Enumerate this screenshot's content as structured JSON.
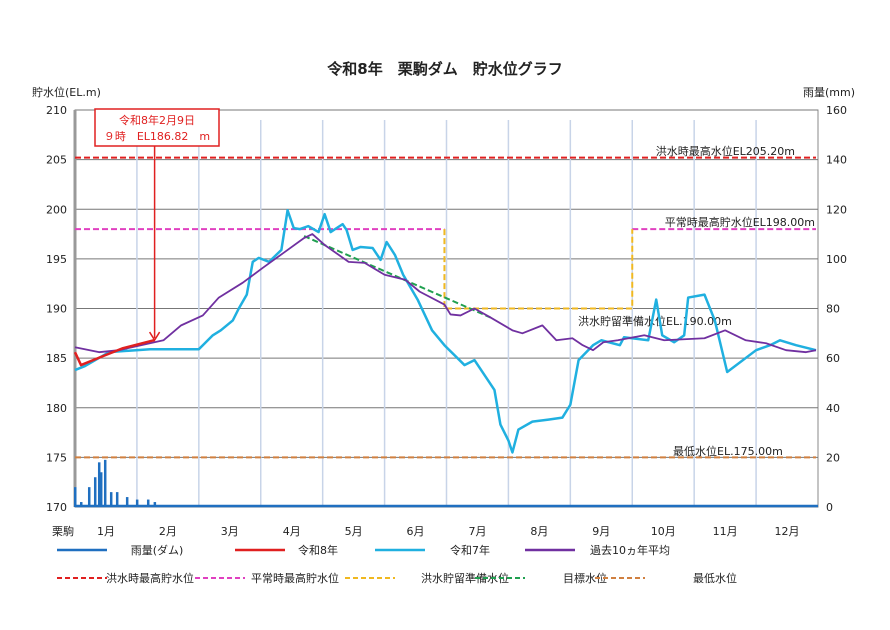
{
  "chart_data": {
    "type": "line",
    "title": "令和8年　栗駒ダム　貯水位グラフ",
    "ylabel": "貯水位(EL.m)",
    "y2label": "雨量(mm)",
    "xlabel": "栗駒",
    "ylim": [
      170,
      210
    ],
    "y2lim": [
      0,
      160
    ],
    "yticks": [
      "170",
      "175",
      "180",
      "185",
      "190",
      "195",
      "200",
      "205",
      "210"
    ],
    "y2ticks": [
      "0",
      "20",
      "40",
      "60",
      "80",
      "100",
      "120",
      "140",
      "160"
    ],
    "categories": [
      "1月",
      "2月",
      "3月",
      "4月",
      "5月",
      "6月",
      "7月",
      "8月",
      "9月",
      "10月",
      "11月",
      "12月"
    ],
    "grid": true,
    "annotation": {
      "line1": "令和8年2月9日",
      "line2": "９時　EL186.82　m",
      "date": "2/9",
      "value": 186.82
    },
    "reference_labels": {
      "flood_max": "洪水時最高水位EL205.20m",
      "normal_max": "平常時最高貯水位EL198.00m",
      "flood_prep": "洪水貯留準備水位EL.190.00m",
      "min": "最低水位EL.175.00m"
    },
    "series": [
      {
        "name": "令和8年",
        "color": "#e02020",
        "points": [
          [
            "1/1",
            185.6
          ],
          [
            "1/4",
            184.3
          ],
          [
            "1/15",
            185.2
          ],
          [
            "1/25",
            186.0
          ],
          [
            "2/9",
            186.82
          ]
        ]
      },
      {
        "name": "令和7年",
        "color": "#20b0e0",
        "points": [
          [
            "1/1",
            183.8
          ],
          [
            "1/6",
            184.2
          ],
          [
            "1/18",
            185.6
          ],
          [
            "2/7",
            185.9
          ],
          [
            "3/1",
            185.9
          ],
          [
            "3/3",
            186.3
          ],
          [
            "3/8",
            187.3
          ],
          [
            "3/12",
            187.8
          ],
          [
            "3/18",
            188.8
          ],
          [
            "3/21",
            190.0
          ],
          [
            "3/25",
            191.4
          ],
          [
            "3/28",
            194.7
          ],
          [
            "3/31",
            195.1
          ],
          [
            "4/5",
            194.7
          ],
          [
            "4/11",
            195.9
          ],
          [
            "4/14",
            199.9
          ],
          [
            "4/17",
            198.1
          ],
          [
            "4/20",
            198.0
          ],
          [
            "4/24",
            198.3
          ],
          [
            "4/29",
            197.7
          ],
          [
            "5/2",
            199.5
          ],
          [
            "5/5",
            197.7
          ],
          [
            "5/11",
            198.5
          ],
          [
            "5/13",
            197.9
          ],
          [
            "5/16",
            195.9
          ],
          [
            "5/20",
            196.2
          ],
          [
            "5/26",
            196.1
          ],
          [
            "5/30",
            194.9
          ],
          [
            "6/2",
            196.7
          ],
          [
            "6/6",
            195.4
          ],
          [
            "6/10",
            193.4
          ],
          [
            "6/17",
            190.9
          ],
          [
            "6/24",
            187.8
          ],
          [
            "6/30",
            186.3
          ],
          [
            "7/10",
            184.3
          ],
          [
            "7/15",
            184.8
          ],
          [
            "7/25",
            181.8
          ],
          [
            "7/28",
            178.3
          ],
          [
            "8/1",
            176.7
          ],
          [
            "8/3",
            175.5
          ],
          [
            "8/6",
            177.8
          ],
          [
            "8/13",
            178.6
          ],
          [
            "8/21",
            178.8
          ],
          [
            "8/28",
            179.0
          ],
          [
            "9/1",
            180.3
          ],
          [
            "9/5",
            184.8
          ],
          [
            "9/12",
            186.3
          ],
          [
            "9/16",
            186.8
          ],
          [
            "9/25",
            186.3
          ],
          [
            "9/27",
            187.1
          ],
          [
            "10/9",
            186.8
          ],
          [
            "10/13",
            190.9
          ],
          [
            "10/16",
            187.3
          ],
          [
            "10/22",
            186.6
          ],
          [
            "10/27",
            187.3
          ],
          [
            "10/29",
            191.1
          ],
          [
            "11/6",
            191.4
          ],
          [
            "11/11",
            188.8
          ],
          [
            "11/17",
            183.6
          ],
          [
            "12/1",
            185.8
          ],
          [
            "12/8",
            186.3
          ],
          [
            "12/13",
            186.8
          ],
          [
            "12/21",
            186.3
          ],
          [
            "12/31",
            185.8
          ]
        ]
      },
      {
        "name": "過去10ヵ年平均",
        "color": "#7030a0",
        "points": [
          [
            "1/1",
            186.1
          ],
          [
            "1/13",
            185.6
          ],
          [
            "1/23",
            185.8
          ],
          [
            "2/13",
            186.8
          ],
          [
            "2/21",
            188.3
          ],
          [
            "3/3",
            189.3
          ],
          [
            "3/11",
            191.1
          ],
          [
            "3/23",
            192.6
          ],
          [
            "4/2",
            194.1
          ],
          [
            "4/12",
            195.6
          ],
          [
            "4/22",
            197.1
          ],
          [
            "4/26",
            197.5
          ],
          [
            "5/2",
            196.4
          ],
          [
            "5/14",
            194.7
          ],
          [
            "5/22",
            194.6
          ],
          [
            "6/1",
            193.4
          ],
          [
            "6/11",
            192.9
          ],
          [
            "6/18",
            191.7
          ],
          [
            "6/30",
            190.4
          ],
          [
            "7/3",
            189.4
          ],
          [
            "7/8",
            189.3
          ],
          [
            "7/15",
            190.0
          ],
          [
            "7/23",
            189.1
          ],
          [
            "8/3",
            187.8
          ],
          [
            "8/8",
            187.5
          ],
          [
            "8/18",
            188.3
          ],
          [
            "8/25",
            186.8
          ],
          [
            "9/2",
            187.0
          ],
          [
            "9/7",
            186.3
          ],
          [
            "9/12",
            185.8
          ],
          [
            "9/17",
            186.6
          ],
          [
            "9/24",
            186.8
          ],
          [
            "10/7",
            187.3
          ],
          [
            "10/17",
            186.8
          ],
          [
            "11/6",
            187.0
          ],
          [
            "11/16",
            187.8
          ],
          [
            "11/26",
            186.8
          ],
          [
            "12/6",
            186.5
          ],
          [
            "12/16",
            185.8
          ],
          [
            "12/26",
            185.6
          ],
          [
            "12/31",
            185.8
          ]
        ]
      }
    ],
    "rainfall": {
      "name": "雨量(ダム)",
      "color": "#1f6fc0",
      "points": [
        [
          "1/1",
          8
        ],
        [
          "1/4",
          2
        ],
        [
          "1/8",
          8
        ],
        [
          "1/11",
          12
        ],
        [
          "1/13",
          18
        ],
        [
          "1/14",
          14
        ],
        [
          "1/16",
          19
        ],
        [
          "1/19",
          6
        ],
        [
          "1/22",
          6
        ],
        [
          "1/27",
          4
        ],
        [
          "2/1",
          3
        ],
        [
          "2/6",
          3
        ],
        [
          "2/9",
          2
        ]
      ]
    },
    "reference_lines": [
      {
        "name": "洪水時最高貯水位",
        "color": "#e02020",
        "segments": [
          [
            [
              "1/1",
              205.2
            ],
            [
              "12/31",
              205.2
            ]
          ]
        ]
      },
      {
        "name": "平常時最高貯水位",
        "color": "#e040c0",
        "segments": [
          [
            [
              "1/1",
              198
            ],
            [
              "6/30",
              198
            ]
          ],
          [
            [
              "10/1",
              198
            ],
            [
              "12/31",
              198
            ]
          ]
        ]
      },
      {
        "name": "洪水貯留準備水位",
        "color": "#f0b820",
        "segments": [
          [
            [
              "6/30",
              198
            ],
            [
              "6/30",
              190
            ],
            [
              "10/1",
              190
            ],
            [
              "10/1",
              198
            ]
          ]
        ]
      },
      {
        "name": "目標水位",
        "color": "#20a050",
        "segments": [
          [
            [
              "4/22",
              197.3
            ],
            [
              "7/23",
              189.1
            ]
          ]
        ]
      },
      {
        "name": "最低水位",
        "color": "#d08040",
        "segments": [
          [
            [
              "1/1",
              175
            ],
            [
              "12/31",
              175
            ]
          ]
        ]
      }
    ]
  }
}
